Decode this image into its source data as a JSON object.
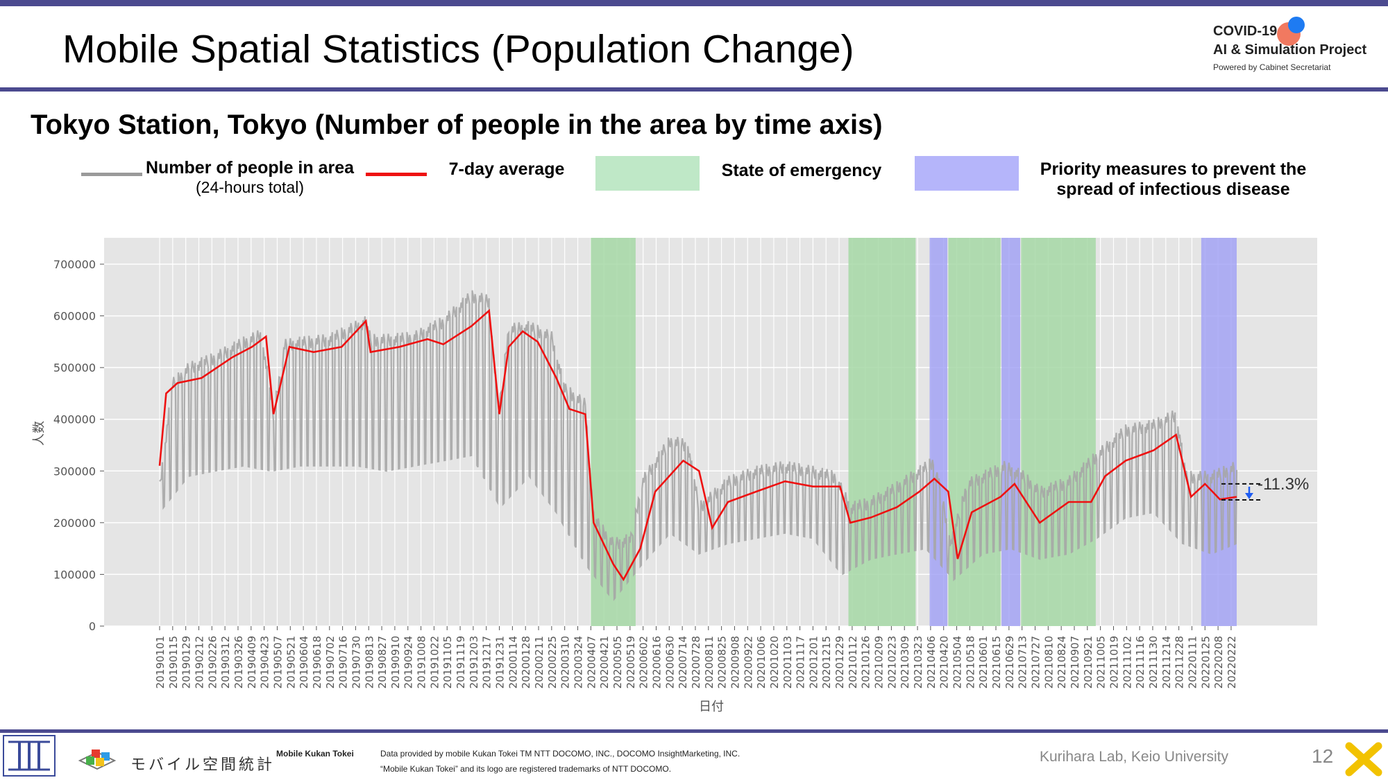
{
  "slide": {
    "title": "Mobile Spatial Statistics (Population Change)",
    "subtitle": "Tokyo Station, Tokyo (Number of people in the area by time axis)",
    "page_number": "12",
    "brand": {
      "line1": "COVID-19",
      "line2": "AI & Simulation Project",
      "line3": "Powered by Cabinet Secretariat"
    },
    "footer": {
      "logo_text": "モバイル空間統計",
      "bold_label": "Mobile Kukan Tokei",
      "note_line1": "Data provided by mobile Kukan Tokei TM NTT DOCOMO, INC., DOCOMO InsightMarketing, INC.",
      "note_line2": "“Mobile Kukan Tokei” and its logo are registered trademarks of NTT DOCOMO.",
      "credit": "Kurihara Lab, Keio University"
    },
    "colors": {
      "accent": "#4b4a8f",
      "daily": "#a6a6a6",
      "average": "#ee1111",
      "emergency": "#a6d8a6",
      "priority": "#9f9ff5",
      "plot_bg": "#e5e5e5"
    }
  },
  "legend": {
    "daily_label": "Number of people in area",
    "daily_sub": "(24-hours total)",
    "average_label": "7-day average",
    "emergency_label": "State of emergency",
    "priority_label_1": "Priority measures to prevent the",
    "priority_label_2": "spread of infectious disease"
  },
  "chart_data": {
    "type": "line",
    "xlabel": "日付",
    "ylabel": "人数",
    "ylim": [
      0,
      750000
    ],
    "yticks": [
      0,
      100000,
      200000,
      300000,
      400000,
      500000,
      600000,
      700000
    ],
    "x_range": [
      "20190101",
      "20220228"
    ],
    "x_tick_labels": [
      "20190101",
      "20190115",
      "20190129",
      "20190212",
      "20190226",
      "20190312",
      "20190326",
      "20190409",
      "20190423",
      "20190507",
      "20190521",
      "20190604",
      "20190618",
      "20190702",
      "20190716",
      "20190730",
      "20190813",
      "20190827",
      "20190910",
      "20190924",
      "20191008",
      "20191022",
      "20191105",
      "20191119",
      "20191203",
      "20191217",
      "20191231",
      "20200114",
      "20200128",
      "20200211",
      "20200225",
      "20200310",
      "20200324",
      "20200407",
      "20200421",
      "20200505",
      "20200519",
      "20200602",
      "20200616",
      "20200630",
      "20200714",
      "20200728",
      "20200811",
      "20200825",
      "20200908",
      "20200922",
      "20201006",
      "20201020",
      "20201103",
      "20201117",
      "20201201",
      "20201215",
      "20201229",
      "20210112",
      "20210126",
      "20210209",
      "20210223",
      "20210309",
      "20210323",
      "20210406",
      "20210420",
      "20210504",
      "20210518",
      "20210601",
      "20210615",
      "20210629",
      "20210713",
      "20210727",
      "20210810",
      "20210824",
      "20210907",
      "20210921",
      "20211005",
      "20211019",
      "20211102",
      "20211116",
      "20211130",
      "20211214",
      "20211228",
      "20220111",
      "20220125",
      "20220208",
      "20220222"
    ],
    "emergency_periods": [
      [
        "20200407",
        "20200525"
      ],
      [
        "20210108",
        "20210321"
      ],
      [
        "20210425",
        "20210620"
      ],
      [
        "20210712",
        "20210930"
      ]
    ],
    "priority_periods": [
      [
        "20210405",
        "20210424"
      ],
      [
        "20210621",
        "20210711"
      ],
      [
        "20220121",
        "20220228"
      ]
    ],
    "series": [
      {
        "name": "Number of people in area",
        "sub": "(24-hours total)",
        "kind": "daily",
        "weekday_points": [
          [
            "20190101",
            280000
          ],
          [
            "20190115",
            480000
          ],
          [
            "20190201",
            510000
          ],
          [
            "20190301",
            530000
          ],
          [
            "20190401",
            560000
          ],
          [
            "20190420",
            575000
          ],
          [
            "20190503",
            420000
          ],
          [
            "20190515",
            555000
          ],
          [
            "20190601",
            560000
          ],
          [
            "20190701",
            565000
          ],
          [
            "20190810",
            600000
          ],
          [
            "20190815",
            565000
          ],
          [
            "20190901",
            565000
          ],
          [
            "20191001",
            570000
          ],
          [
            "20191101",
            600000
          ],
          [
            "20191201",
            650000
          ],
          [
            "20191220",
            640000
          ],
          [
            "20191230",
            420000
          ],
          [
            "20200110",
            585000
          ],
          [
            "20200201",
            590000
          ],
          [
            "20200225",
            570000
          ],
          [
            "20200310",
            470000
          ],
          [
            "20200401",
            440000
          ],
          [
            "20200410",
            220000
          ],
          [
            "20200501",
            170000
          ],
          [
            "20200520",
            180000
          ],
          [
            "20200601",
            290000
          ],
          [
            "20200701",
            370000
          ],
          [
            "20200720",
            360000
          ],
          [
            "20200801",
            240000
          ],
          [
            "20200901",
            290000
          ],
          [
            "20201001",
            310000
          ],
          [
            "20201101",
            320000
          ],
          [
            "20201201",
            310000
          ],
          [
            "20201225",
            300000
          ],
          [
            "20210110",
            240000
          ],
          [
            "20210201",
            250000
          ],
          [
            "20210301",
            280000
          ],
          [
            "20210325",
            310000
          ],
          [
            "20210410",
            330000
          ],
          [
            "20210428",
            170000
          ],
          [
            "20210515",
            285000
          ],
          [
            "20210601",
            300000
          ],
          [
            "20210625",
            320000
          ],
          [
            "20210715",
            300000
          ],
          [
            "20210801",
            270000
          ],
          [
            "20210901",
            290000
          ],
          [
            "20211001",
            340000
          ],
          [
            "20211101",
            390000
          ],
          [
            "20211201",
            400000
          ],
          [
            "20211225",
            420000
          ],
          [
            "20220105",
            300000
          ],
          [
            "20220201",
            300000
          ],
          [
            "20220228",
            320000
          ]
        ],
        "weekend_points": [
          [
            "20190101",
            220000
          ],
          [
            "20190201",
            290000
          ],
          [
            "20190301",
            300000
          ],
          [
            "20190401",
            310000
          ],
          [
            "20190501",
            300000
          ],
          [
            "20190601",
            310000
          ],
          [
            "20190701",
            310000
          ],
          [
            "20190801",
            310000
          ],
          [
            "20190901",
            300000
          ],
          [
            "20191001",
            310000
          ],
          [
            "20191101",
            320000
          ],
          [
            "20191201",
            330000
          ],
          [
            "20200101",
            230000
          ],
          [
            "20200201",
            290000
          ],
          [
            "20200301",
            220000
          ],
          [
            "20200401",
            120000
          ],
          [
            "20200501",
            50000
          ],
          [
            "20200601",
            120000
          ],
          [
            "20200701",
            180000
          ],
          [
            "20200801",
            140000
          ],
          [
            "20200901",
            160000
          ],
          [
            "20201001",
            170000
          ],
          [
            "20201101",
            180000
          ],
          [
            "20201201",
            170000
          ],
          [
            "20210101",
            100000
          ],
          [
            "20210201",
            130000
          ],
          [
            "20210301",
            140000
          ],
          [
            "20210401",
            150000
          ],
          [
            "20210501",
            90000
          ],
          [
            "20210601",
            140000
          ],
          [
            "20210701",
            150000
          ],
          [
            "20210801",
            130000
          ],
          [
            "20210901",
            140000
          ],
          [
            "20211001",
            170000
          ],
          [
            "20211101",
            210000
          ],
          [
            "20211201",
            220000
          ],
          [
            "20220101",
            160000
          ],
          [
            "20220201",
            140000
          ],
          [
            "20220228",
            160000
          ]
        ]
      },
      {
        "name": "7-day average",
        "kind": "average",
        "points": [
          [
            "20190101",
            310000
          ],
          [
            "20190108",
            450000
          ],
          [
            "20190120",
            470000
          ],
          [
            "20190215",
            480000
          ],
          [
            "20190320",
            520000
          ],
          [
            "20190410",
            540000
          ],
          [
            "20190425",
            560000
          ],
          [
            "20190503",
            410000
          ],
          [
            "20190520",
            540000
          ],
          [
            "20190615",
            530000
          ],
          [
            "20190715",
            540000
          ],
          [
            "20190810",
            590000
          ],
          [
            "20190815",
            530000
          ],
          [
            "20190915",
            540000
          ],
          [
            "20191015",
            555000
          ],
          [
            "20191101",
            545000
          ],
          [
            "20191201",
            580000
          ],
          [
            "20191220",
            610000
          ],
          [
            "20191231",
            410000
          ],
          [
            "20200110",
            540000
          ],
          [
            "20200125",
            570000
          ],
          [
            "20200210",
            550000
          ],
          [
            "20200301",
            480000
          ],
          [
            "20200315",
            420000
          ],
          [
            "20200401",
            410000
          ],
          [
            "20200410",
            200000
          ],
          [
            "20200501",
            120000
          ],
          [
            "20200512",
            90000
          ],
          [
            "20200530",
            150000
          ],
          [
            "20200615",
            260000
          ],
          [
            "20200715",
            320000
          ],
          [
            "20200801",
            300000
          ],
          [
            "20200815",
            190000
          ],
          [
            "20200901",
            240000
          ],
          [
            "20201001",
            260000
          ],
          [
            "20201101",
            280000
          ],
          [
            "20201201",
            270000
          ],
          [
            "20201230",
            270000
          ],
          [
            "20210110",
            200000
          ],
          [
            "20210201",
            210000
          ],
          [
            "20210301",
            230000
          ],
          [
            "20210325",
            260000
          ],
          [
            "20210410",
            285000
          ],
          [
            "20210425",
            260000
          ],
          [
            "20210505",
            130000
          ],
          [
            "20210520",
            220000
          ],
          [
            "20210620",
            250000
          ],
          [
            "20210705",
            275000
          ],
          [
            "20210801",
            200000
          ],
          [
            "20210901",
            240000
          ],
          [
            "20210925",
            240000
          ],
          [
            "20211010",
            290000
          ],
          [
            "20211101",
            320000
          ],
          [
            "20211201",
            340000
          ],
          [
            "20211225",
            370000
          ],
          [
            "20220110",
            250000
          ],
          [
            "20220125",
            275000
          ],
          [
            "20220210",
            245000
          ],
          [
            "20220228",
            250000
          ]
        ]
      }
    ],
    "annotation": {
      "text": "-11.3%",
      "from": 275000,
      "to": 244000
    }
  }
}
